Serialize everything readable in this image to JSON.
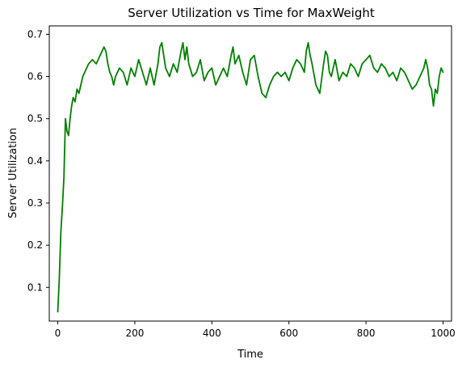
{
  "chart_data": {
    "type": "line",
    "title": "Server Utilization vs Time for MaxWeight",
    "xlabel": "Time",
    "ylabel": "Server Utilization",
    "xlim": [
      -22,
      1022
    ],
    "ylim": [
      0.02,
      0.72
    ],
    "xticks": [
      0,
      200,
      400,
      600,
      800,
      1000
    ],
    "yticks": [
      0.1,
      0.2,
      0.3,
      0.4,
      0.5,
      0.6,
      0.7
    ],
    "xtick_labels": [
      "0",
      "200",
      "400",
      "600",
      "800",
      "1000"
    ],
    "ytick_labels": [
      "0.1",
      "0.2",
      "0.3",
      "0.4",
      "0.5",
      "0.6",
      "0.7"
    ],
    "grid": false,
    "legend": "none",
    "series": [
      {
        "color": "#008000",
        "x": [
          0,
          4,
          8,
          12,
          16,
          20,
          24,
          28,
          32,
          36,
          40,
          45,
          50,
          55,
          60,
          65,
          70,
          80,
          90,
          100,
          110,
          120,
          125,
          130,
          135,
          140,
          145,
          150,
          160,
          170,
          180,
          190,
          200,
          210,
          220,
          230,
          240,
          250,
          260,
          265,
          270,
          275,
          280,
          290,
          300,
          310,
          320,
          325,
          330,
          335,
          340,
          350,
          360,
          370,
          380,
          390,
          400,
          410,
          420,
          430,
          440,
          450,
          455,
          460,
          470,
          480,
          490,
          500,
          510,
          520,
          530,
          540,
          550,
          560,
          570,
          580,
          590,
          600,
          610,
          620,
          630,
          640,
          645,
          650,
          655,
          660,
          670,
          680,
          690,
          695,
          700,
          705,
          710,
          720,
          730,
          740,
          750,
          760,
          770,
          780,
          790,
          800,
          810,
          820,
          830,
          840,
          850,
          860,
          870,
          880,
          890,
          900,
          910,
          920,
          930,
          940,
          950,
          955,
          960,
          965,
          970,
          975,
          980,
          985,
          990,
          995,
          1000
        ],
        "y": [
          0.042,
          0.12,
          0.23,
          0.29,
          0.36,
          0.5,
          0.47,
          0.46,
          0.5,
          0.53,
          0.55,
          0.54,
          0.57,
          0.56,
          0.58,
          0.6,
          0.61,
          0.63,
          0.64,
          0.63,
          0.65,
          0.67,
          0.66,
          0.63,
          0.61,
          0.6,
          0.58,
          0.6,
          0.62,
          0.61,
          0.58,
          0.62,
          0.6,
          0.64,
          0.61,
          0.58,
          0.62,
          0.58,
          0.63,
          0.67,
          0.68,
          0.65,
          0.62,
          0.6,
          0.63,
          0.61,
          0.66,
          0.68,
          0.64,
          0.67,
          0.63,
          0.6,
          0.61,
          0.64,
          0.59,
          0.61,
          0.62,
          0.58,
          0.6,
          0.62,
          0.6,
          0.65,
          0.67,
          0.63,
          0.65,
          0.61,
          0.58,
          0.64,
          0.65,
          0.6,
          0.56,
          0.55,
          0.58,
          0.6,
          0.61,
          0.6,
          0.61,
          0.59,
          0.62,
          0.64,
          0.63,
          0.61,
          0.66,
          0.68,
          0.65,
          0.63,
          0.58,
          0.56,
          0.63,
          0.66,
          0.65,
          0.61,
          0.6,
          0.64,
          0.59,
          0.61,
          0.6,
          0.63,
          0.62,
          0.6,
          0.63,
          0.64,
          0.65,
          0.62,
          0.61,
          0.63,
          0.62,
          0.6,
          0.61,
          0.59,
          0.62,
          0.61,
          0.59,
          0.57,
          0.58,
          0.6,
          0.62,
          0.64,
          0.62,
          0.58,
          0.57,
          0.53,
          0.57,
          0.56,
          0.6,
          0.62,
          0.61
        ]
      }
    ]
  }
}
